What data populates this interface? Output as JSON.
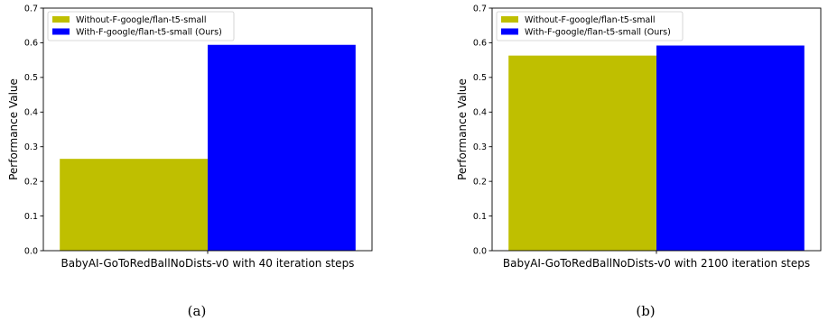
{
  "chart_data": [
    {
      "type": "bar",
      "caption": "(a)",
      "categories": [
        "BabyAI-GoToRedBallNoDists-v0 with 40 iteration steps"
      ],
      "series": [
        {
          "name": "Without-F-google/flan-t5-small",
          "values": [
            0.265
          ],
          "color": "#bfbf00"
        },
        {
          "name": "With-F-google/flan-t5-small (Ours)",
          "values": [
            0.594
          ],
          "color": "#0000ff"
        }
      ],
      "xlabel": "BabyAI-GoToRedBallNoDists-v0 with 40 iteration steps",
      "ylabel": "Performance Value",
      "ylim": [
        0,
        0.7
      ],
      "yticks": [
        "0.0",
        "0.1",
        "0.2",
        "0.3",
        "0.4",
        "0.5",
        "0.6",
        "0.7"
      ],
      "legend": "top-left",
      "grid": false
    },
    {
      "type": "bar",
      "caption": "(b)",
      "categories": [
        "BabyAI-GoToRedBallNoDists-v0 with 2100 iteration steps"
      ],
      "series": [
        {
          "name": "Without-F-google/flan-t5-small",
          "values": [
            0.563
          ],
          "color": "#bfbf00"
        },
        {
          "name": "With-F-google/flan-t5-small (Ours)",
          "values": [
            0.592
          ],
          "color": "#0000ff"
        }
      ],
      "xlabel": "BabyAI-GoToRedBallNoDists-v0 with 2100 iteration steps",
      "ylabel": "Performance Value",
      "ylim": [
        0,
        0.7
      ],
      "yticks": [
        "0.0",
        "0.1",
        "0.2",
        "0.3",
        "0.4",
        "0.5",
        "0.6",
        "0.7"
      ],
      "legend": "top-left",
      "grid": false
    }
  ]
}
